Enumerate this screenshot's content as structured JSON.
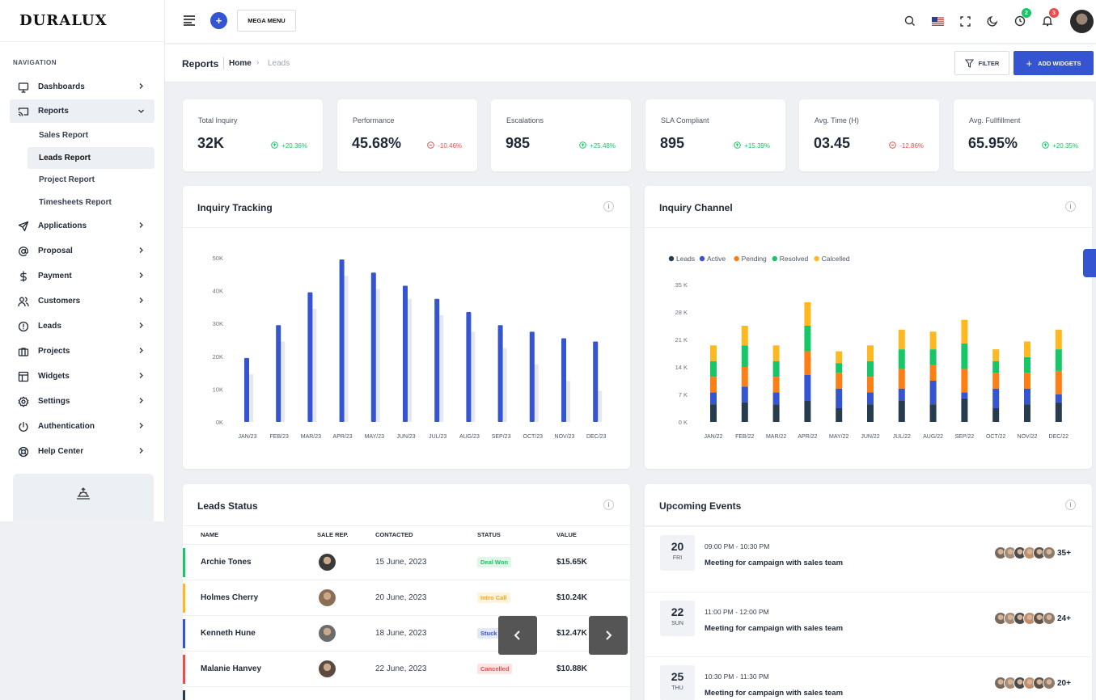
{
  "brand": "DURALUX",
  "nav": {
    "caption": "NAVIGATION",
    "items": [
      {
        "label": "Dashboards",
        "icon": "monitor-icon"
      },
      {
        "label": "Reports",
        "icon": "cast-icon"
      },
      {
        "label": "Applications",
        "icon": "send-icon"
      },
      {
        "label": "Proposal",
        "icon": "at-sign-icon"
      },
      {
        "label": "Payment",
        "icon": "dollar-icon"
      },
      {
        "label": "Customers",
        "icon": "users-icon"
      },
      {
        "label": "Leads",
        "icon": "alert-circle-icon"
      },
      {
        "label": "Projects",
        "icon": "briefcase-icon"
      },
      {
        "label": "Widgets",
        "icon": "layout-icon"
      },
      {
        "label": "Settings",
        "icon": "settings-icon"
      },
      {
        "label": "Authentication",
        "icon": "power-icon"
      },
      {
        "label": "Help Center",
        "icon": "life-buoy-icon"
      }
    ],
    "sub": [
      "Sales Report",
      "Leads Report",
      "Project Report",
      "Timesheets Report"
    ]
  },
  "topbar": {
    "mega": "MEGA MENU",
    "badge_green": "2",
    "badge_red": "3"
  },
  "subbar": {
    "title": "Reports",
    "home": "Home",
    "current": "Leads",
    "filter": "FILTER",
    "add": "ADD WIDGETS"
  },
  "stats": [
    {
      "label": "Total Inquiry",
      "value": "32K",
      "change": "+20.36%",
      "dir": "up"
    },
    {
      "label": "Performance",
      "value": "45.68%",
      "change": "-10.46%",
      "dir": "down"
    },
    {
      "label": "Escalations",
      "value": "985",
      "change": "+25.48%",
      "dir": "up"
    },
    {
      "label": "SLA Compliant",
      "value": "895",
      "change": "+15.39%",
      "dir": "up"
    },
    {
      "label": "Avg. Time (H)",
      "value": "03.45",
      "change": "-12.86%",
      "dir": "down"
    },
    {
      "label": "Avg. Fullfillment",
      "value": "65.95%",
      "change": "+20.35%",
      "dir": "up"
    }
  ],
  "inquiry_tracking": {
    "title": "Inquiry Tracking",
    "info": "i"
  },
  "inquiry_channel": {
    "title": "Inquiry Channel",
    "info": "i"
  },
  "chart_data": [
    {
      "type": "bar",
      "categories": [
        "JAN/23",
        "FEB/23",
        "MAR/23",
        "APR/23",
        "MAY/23",
        "JUN/23",
        "JUL/23",
        "AUG/23",
        "SEP/23",
        "OCT/23",
        "NOV/23",
        "DEC/23"
      ],
      "series": [
        {
          "values": [
            19.5,
            29.5,
            39.5,
            49.5,
            45.5,
            41.5,
            37.5,
            33.5,
            29.5,
            27.5,
            25.5,
            24.5
          ],
          "color": "#3454d1"
        },
        {
          "values": [
            14.5,
            24.5,
            34.5,
            44.5,
            40.5,
            37.5,
            32.5,
            27.5,
            22.5,
            17.5,
            12.5,
            9.5
          ],
          "color": "#e6e8ee"
        }
      ],
      "yticks": [
        "0K",
        "10K",
        "20K",
        "30K",
        "40K",
        "50K"
      ],
      "ylim": [
        0,
        50
      ],
      "grid": false
    },
    {
      "type": "bar",
      "stacked": true,
      "categories": [
        "JAN/22",
        "FEB/22",
        "MAR/22",
        "APR/22",
        "MAY/22",
        "JUN/22",
        "JUL/22",
        "AUG/22",
        "SEP/22",
        "OCT/22",
        "NOV/22",
        "DEC/22"
      ],
      "series": [
        {
          "name": "Leads",
          "color": "#283c50",
          "values": [
            4.5,
            5,
            4.5,
            5.5,
            3.5,
            4.5,
            5.5,
            4.5,
            6,
            3.5,
            4.5,
            5
          ]
        },
        {
          "name": "Active",
          "color": "#3454d1",
          "values": [
            3,
            4,
            3,
            6.5,
            5,
            3,
            3,
            6,
            1.5,
            5,
            4,
            2
          ]
        },
        {
          "name": "Pending",
          "color": "#fd7e14",
          "values": [
            4,
            5,
            4,
            6,
            4,
            4,
            5,
            4,
            6,
            4,
            4,
            6
          ]
        },
        {
          "name": "Resolved",
          "color": "#17c666",
          "values": [
            4,
            5.5,
            4,
            6.5,
            2.5,
            4,
            5,
            4,
            6.5,
            3,
            4,
            5.5
          ]
        },
        {
          "name": "Calcelled",
          "color": "#ffb822",
          "values": [
            4,
            5,
            4,
            6,
            3,
            4,
            5,
            4.5,
            6,
            3,
            4,
            5
          ]
        }
      ],
      "yticks": [
        "0 K",
        "7 K",
        "14 K",
        "21 K",
        "28 K",
        "35 K"
      ],
      "ylim": [
        0,
        35
      ],
      "legend": "top-left",
      "grid": false
    }
  ],
  "leads": {
    "title": "Leads Status",
    "info": "i",
    "cols": [
      "NAME",
      "SALE REP.",
      "CONTACTED",
      "STATUS",
      "VALUE"
    ],
    "rows": [
      {
        "name": "Archie Tones",
        "date": "15 June, 2023",
        "status": "Deal Won",
        "value": "$15.65K",
        "accent": "#17c666",
        "sbg": "#dff7e9",
        "sfg": "#17c666",
        "av": "#3a3a3a"
      },
      {
        "name": "Holmes Cherry",
        "date": "20 June, 2023",
        "status": "Intro Call",
        "value": "$10.24K",
        "accent": "#ffb822",
        "sbg": "#fff3dc",
        "sfg": "#f5a623",
        "av": "#8a6e55"
      },
      {
        "name": "Kenneth Hune",
        "date": "18 June, 2023",
        "status": "Stuck",
        "value": "$12.47K",
        "accent": "#3454d1",
        "sbg": "#e3e8fa",
        "sfg": "#3454d1",
        "av": "#6b6b6b"
      },
      {
        "name": "Malanie Hanvey",
        "date": "22 June, 2023",
        "status": "Cancelled",
        "value": "$10.88K",
        "accent": "#ea4d4d",
        "sbg": "#fde4e4",
        "sfg": "#ea4d4d",
        "av": "#5a4a42"
      }
    ]
  },
  "events": {
    "title": "Upcoming Events",
    "info": "i",
    "items": [
      {
        "day": "20",
        "wd": "FRI",
        "time": "09:00 PM - 10:30 PM",
        "title": "Meeting for campaign with sales team",
        "count": "35+"
      },
      {
        "day": "22",
        "wd": "SUN",
        "time": "11:00 PM - 12:00 PM",
        "title": "Meeting for campaign with sales team",
        "count": "24+"
      },
      {
        "day": "25",
        "wd": "THU",
        "time": "10:30 PM - 11:30 PM",
        "title": "Meeting for campaign with sales team",
        "count": "20+"
      }
    ]
  },
  "icons": {
    "search": "search-icon",
    "flag": "us-flag-icon",
    "fullscreen": "maximize-icon",
    "theme": "moon-icon",
    "timer": "clock-icon",
    "bell": "bell-icon"
  }
}
